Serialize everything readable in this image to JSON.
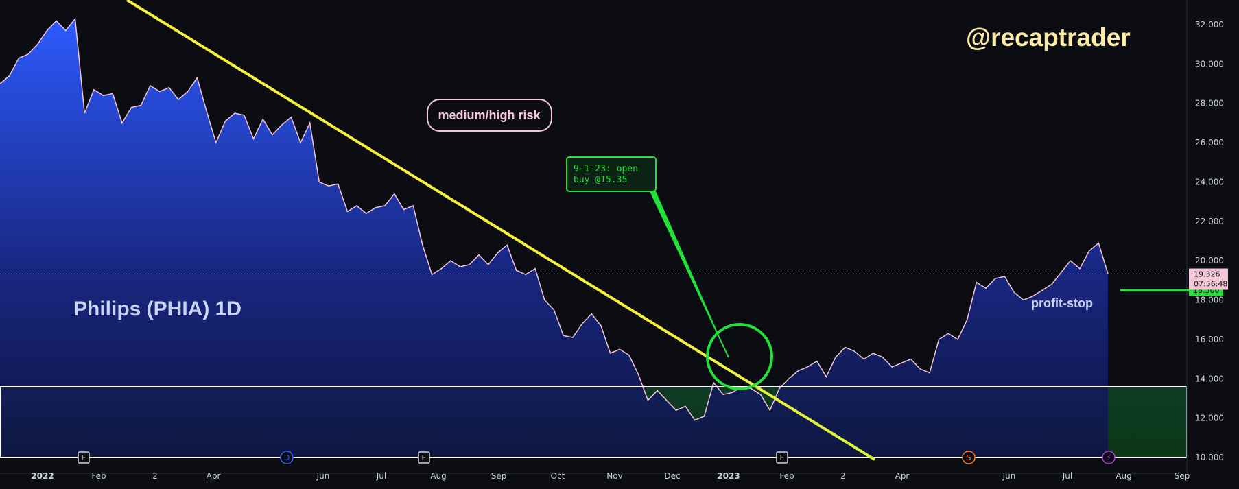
{
  "chart_data": {
    "type": "area",
    "title": "Philips (PHIA) 1D",
    "watermark": "@recaptrader",
    "xlabel": "",
    "ylabel": "",
    "ylim": [
      10,
      33
    ],
    "y_ticks": [
      "32.000",
      "30.000",
      "28.000",
      "26.000",
      "24.000",
      "22.000",
      "20.000",
      "18.000",
      "16.000",
      "14.000",
      "12.000",
      "10.000"
    ],
    "x_ticks": [
      {
        "label": "2022",
        "bold": true
      },
      {
        "label": "Feb",
        "bold": false
      },
      {
        "label": "2",
        "bold": false
      },
      {
        "label": "Apr",
        "bold": false
      },
      {
        "label": "Jun",
        "bold": false
      },
      {
        "label": "Jul",
        "bold": false
      },
      {
        "label": "Aug",
        "bold": false
      },
      {
        "label": "Sep",
        "bold": false
      },
      {
        "label": "Oct",
        "bold": false
      },
      {
        "label": "Nov",
        "bold": false
      },
      {
        "label": "Dec",
        "bold": false
      },
      {
        "label": "2023",
        "bold": true
      },
      {
        "label": "Feb",
        "bold": false
      },
      {
        "label": "2",
        "bold": false
      },
      {
        "label": "Apr",
        "bold": false
      },
      {
        "label": "Jun",
        "bold": false
      },
      {
        "label": "Jul",
        "bold": false
      },
      {
        "label": "Aug",
        "bold": false
      },
      {
        "label": "Sep",
        "bold": false
      }
    ],
    "series": [
      {
        "name": "",
        "color": "#f5c6d6",
        "values": [
          29.0,
          29.4,
          30.3,
          30.5,
          31.0,
          31.7,
          32.2,
          31.7,
          32.3,
          27.5,
          28.7,
          28.4,
          28.5,
          27.0,
          27.8,
          27.9,
          28.9,
          28.6,
          28.8,
          28.2,
          28.6,
          29.3,
          27.6,
          26.0,
          27.1,
          27.5,
          27.4,
          26.2,
          27.2,
          26.4,
          26.9,
          27.3,
          26.0,
          27.0,
          24.0,
          23.8,
          23.9,
          22.5,
          22.8,
          22.4,
          22.7,
          22.8,
          23.4,
          22.6,
          22.8,
          20.8,
          19.3,
          19.6,
          20.0,
          19.7,
          19.8,
          20.3,
          19.8,
          20.4,
          20.8,
          19.5,
          19.3,
          19.6,
          18.0,
          17.5,
          16.2,
          16.1,
          16.8,
          17.3,
          16.7,
          15.3,
          15.5,
          15.2,
          14.2,
          12.9,
          13.4,
          12.9,
          12.4,
          12.6,
          11.9,
          12.1,
          13.8,
          13.2,
          13.3,
          13.6,
          13.5,
          13.2,
          12.4,
          13.5,
          14.0,
          14.4,
          14.6,
          14.9,
          14.1,
          15.1,
          15.6,
          15.4,
          15.0,
          15.3,
          15.1,
          14.6,
          14.8,
          15.0,
          14.5,
          14.3,
          16.0,
          16.3,
          16.0,
          17.0,
          18.9,
          18.6,
          19.1,
          19.2,
          18.4,
          18.0,
          18.2,
          18.5,
          18.8,
          19.4,
          20.0,
          19.6,
          20.5,
          20.9,
          19.33
        ],
        "last_value": "19.326",
        "countdown": "07:56:48"
      }
    ],
    "trendline": {
      "from": {
        "x": "Dec 2021",
        "y": 33.2
      },
      "to": {
        "x": "Apr 2023",
        "y": 10.0
      },
      "color": "#f7f13a"
    },
    "support_zone": {
      "low": 10.0,
      "high": 13.6,
      "color": "#0d3a22"
    },
    "profit_stop": {
      "label": "profit-stop",
      "value": "18.500",
      "color": "#22e03a"
    },
    "risk_label": "medium/high risk",
    "trade_note": {
      "line1": "9-1-23: open",
      "line2": "buy @15.35"
    },
    "event_markers": [
      {
        "symbol": "E",
        "type": "earnings"
      },
      {
        "symbol": "D",
        "type": "dividend"
      },
      {
        "symbol": "E",
        "type": "earnings"
      },
      {
        "symbol": "E",
        "type": "earnings"
      },
      {
        "symbol": "S",
        "type": "split"
      },
      {
        "symbol": "⚡",
        "type": "event"
      }
    ]
  }
}
